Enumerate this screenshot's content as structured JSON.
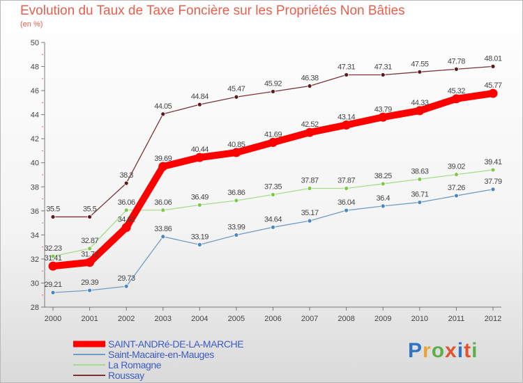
{
  "title": "Evolution du Taux de Taxe Foncière sur les Propriétés Non Bâties",
  "subtitle": "(en %)",
  "logo": {
    "text": "Proxiti",
    "colors": [
      "#2f73c4",
      "#e8a23a",
      "#5bb04a",
      "#e0542f",
      "#2f73c4",
      "#e0542f",
      "#5bb04a"
    ]
  },
  "chart_data": {
    "type": "line",
    "title": "Evolution du Taux de Taxe Foncière sur les Propriétés Non Bâties",
    "ylabel": "(en %)",
    "ylim": [
      28,
      50
    ],
    "yticks": [
      28,
      30,
      32,
      34,
      36,
      38,
      40,
      42,
      44,
      46,
      48,
      50
    ],
    "x": [
      "2000",
      "2001",
      "2002",
      "2003",
      "2004",
      "2005",
      "2006",
      "2007",
      "2008",
      "2009",
      "2010",
      "2011",
      "2012"
    ],
    "series": [
      {
        "name": "Roussay",
        "color": "#7b3236",
        "dot": "#5a1a1e",
        "values": [
          35.5,
          35.5,
          38.3,
          44.05,
          44.84,
          45.47,
          45.92,
          46.38,
          47.31,
          47.31,
          47.55,
          47.78,
          48.01
        ],
        "labels": [
          "35.5",
          "35.5",
          "38.3",
          "44.05",
          "44.84",
          "45.47",
          "45.92",
          "46.38",
          "47.31",
          "47.31",
          "47.55",
          "47.78",
          "48.01"
        ]
      },
      {
        "name": "La Romagne",
        "color": "#a6dc8c",
        "dot": "#7ec84a",
        "values": [
          32.23,
          32.87,
          36.06,
          36.06,
          36.49,
          36.86,
          37.35,
          37.87,
          37.87,
          38.25,
          38.63,
          39.02,
          39.41
        ],
        "labels": [
          "32.23",
          "32.87",
          "36.06",
          "36.06",
          "36.49",
          "36.86",
          "37.35",
          "37.87",
          "37.87",
          "38.25",
          "38.63",
          "39.02",
          "39.41"
        ]
      },
      {
        "name": "Saint-Macaire-en-Mauges",
        "color": "#6f9cc6",
        "dot": "#4a86c2",
        "values": [
          29.21,
          29.39,
          29.73,
          33.86,
          33.19,
          33.99,
          34.64,
          35.17,
          36.04,
          36.4,
          36.71,
          37.26,
          37.79
        ],
        "labels": [
          "29.21",
          "29.39",
          "29.73",
          "33.86",
          "33.19",
          "33.99",
          "34.64",
          "35.17",
          "36.04",
          "36.4",
          "36.71",
          "37.26",
          "37.79"
        ]
      },
      {
        "name": "SAINT-ANDRé-DE-LA-MARCHE",
        "color": "#ff0000",
        "dot": "#ff0000",
        "values": [
          31.41,
          31.72,
          34.62,
          39.69,
          40.44,
          40.85,
          41.69,
          42.52,
          43.14,
          43.79,
          44.33,
          45.32,
          45.77
        ],
        "labels": [
          "31.41",
          "31.72",
          "34.62",
          "39.69",
          "40.44",
          "40.85",
          "41.69",
          "42.52",
          "43.14",
          "43.79",
          "44.33",
          "45.32",
          "45.77"
        ]
      }
    ],
    "legend": [
      "SAINT-ANDRé-DE-LA-MARCHE",
      "Saint-Macaire-en-Mauges",
      "La Romagne",
      "Roussay"
    ],
    "legend_position": "bottom"
  }
}
